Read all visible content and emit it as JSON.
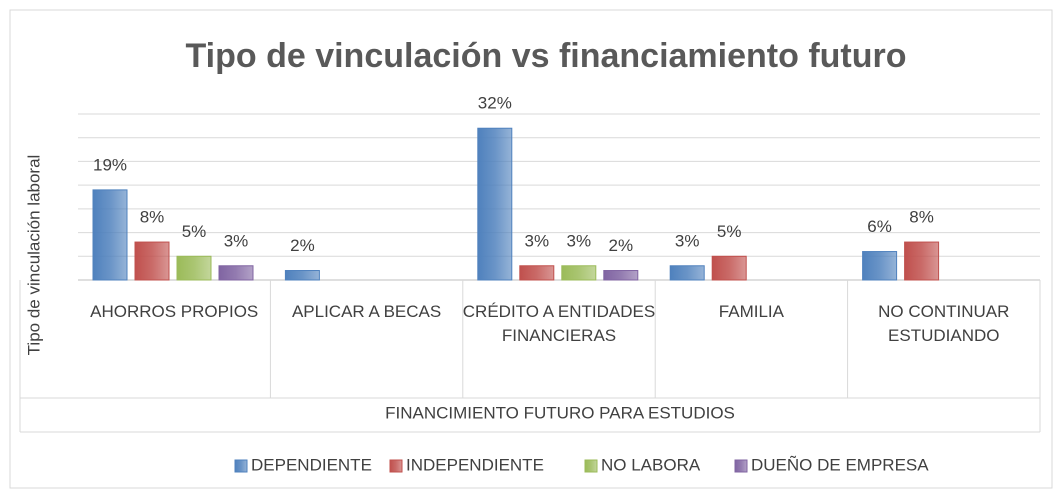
{
  "chart_data": {
    "type": "bar",
    "title": "Tipo de vinculación vs financiamiento futuro",
    "y_label": "Tipo de vinculación laboral",
    "x_label": "FINANCIMIENTO FUTURO PARA ESTUDIOS",
    "categories": [
      "AHORROS PROPIOS",
      "APLICAR A BECAS",
      "CRÉDITO A ENTIDADES FINANCIERAS",
      "FAMILIA",
      "NO CONTINUAR ESTUDIANDO"
    ],
    "series": [
      {
        "name": "DEPENDIENTE",
        "color": "#4f81bd",
        "values": [
          19,
          2,
          32,
          3,
          6
        ],
        "value_labels": [
          "19%",
          "2%",
          "32%",
          "3%",
          "6%"
        ]
      },
      {
        "name": "INDEPENDIENTE",
        "color": "#c0504d",
        "values": [
          8,
          null,
          3,
          5,
          8
        ],
        "value_labels": [
          "8%",
          null,
          "3%",
          "5%",
          "8%"
        ]
      },
      {
        "name": "NO LABORA",
        "color": "#9bbb59",
        "values": [
          5,
          null,
          3,
          null,
          null
        ],
        "value_labels": [
          "5%",
          null,
          "3%",
          null,
          null
        ]
      },
      {
        "name": "DUEÑO DE EMPRESA",
        "color": "#8064a2",
        "values": [
          3,
          null,
          2,
          null,
          null
        ],
        "value_labels": [
          "3%",
          null,
          "2%",
          null,
          null
        ]
      }
    ],
    "ylim": [
      0,
      35
    ],
    "yticks": [
      0,
      5,
      10,
      15,
      20,
      25,
      30,
      35
    ],
    "grid": true,
    "legend": "bottom"
  }
}
